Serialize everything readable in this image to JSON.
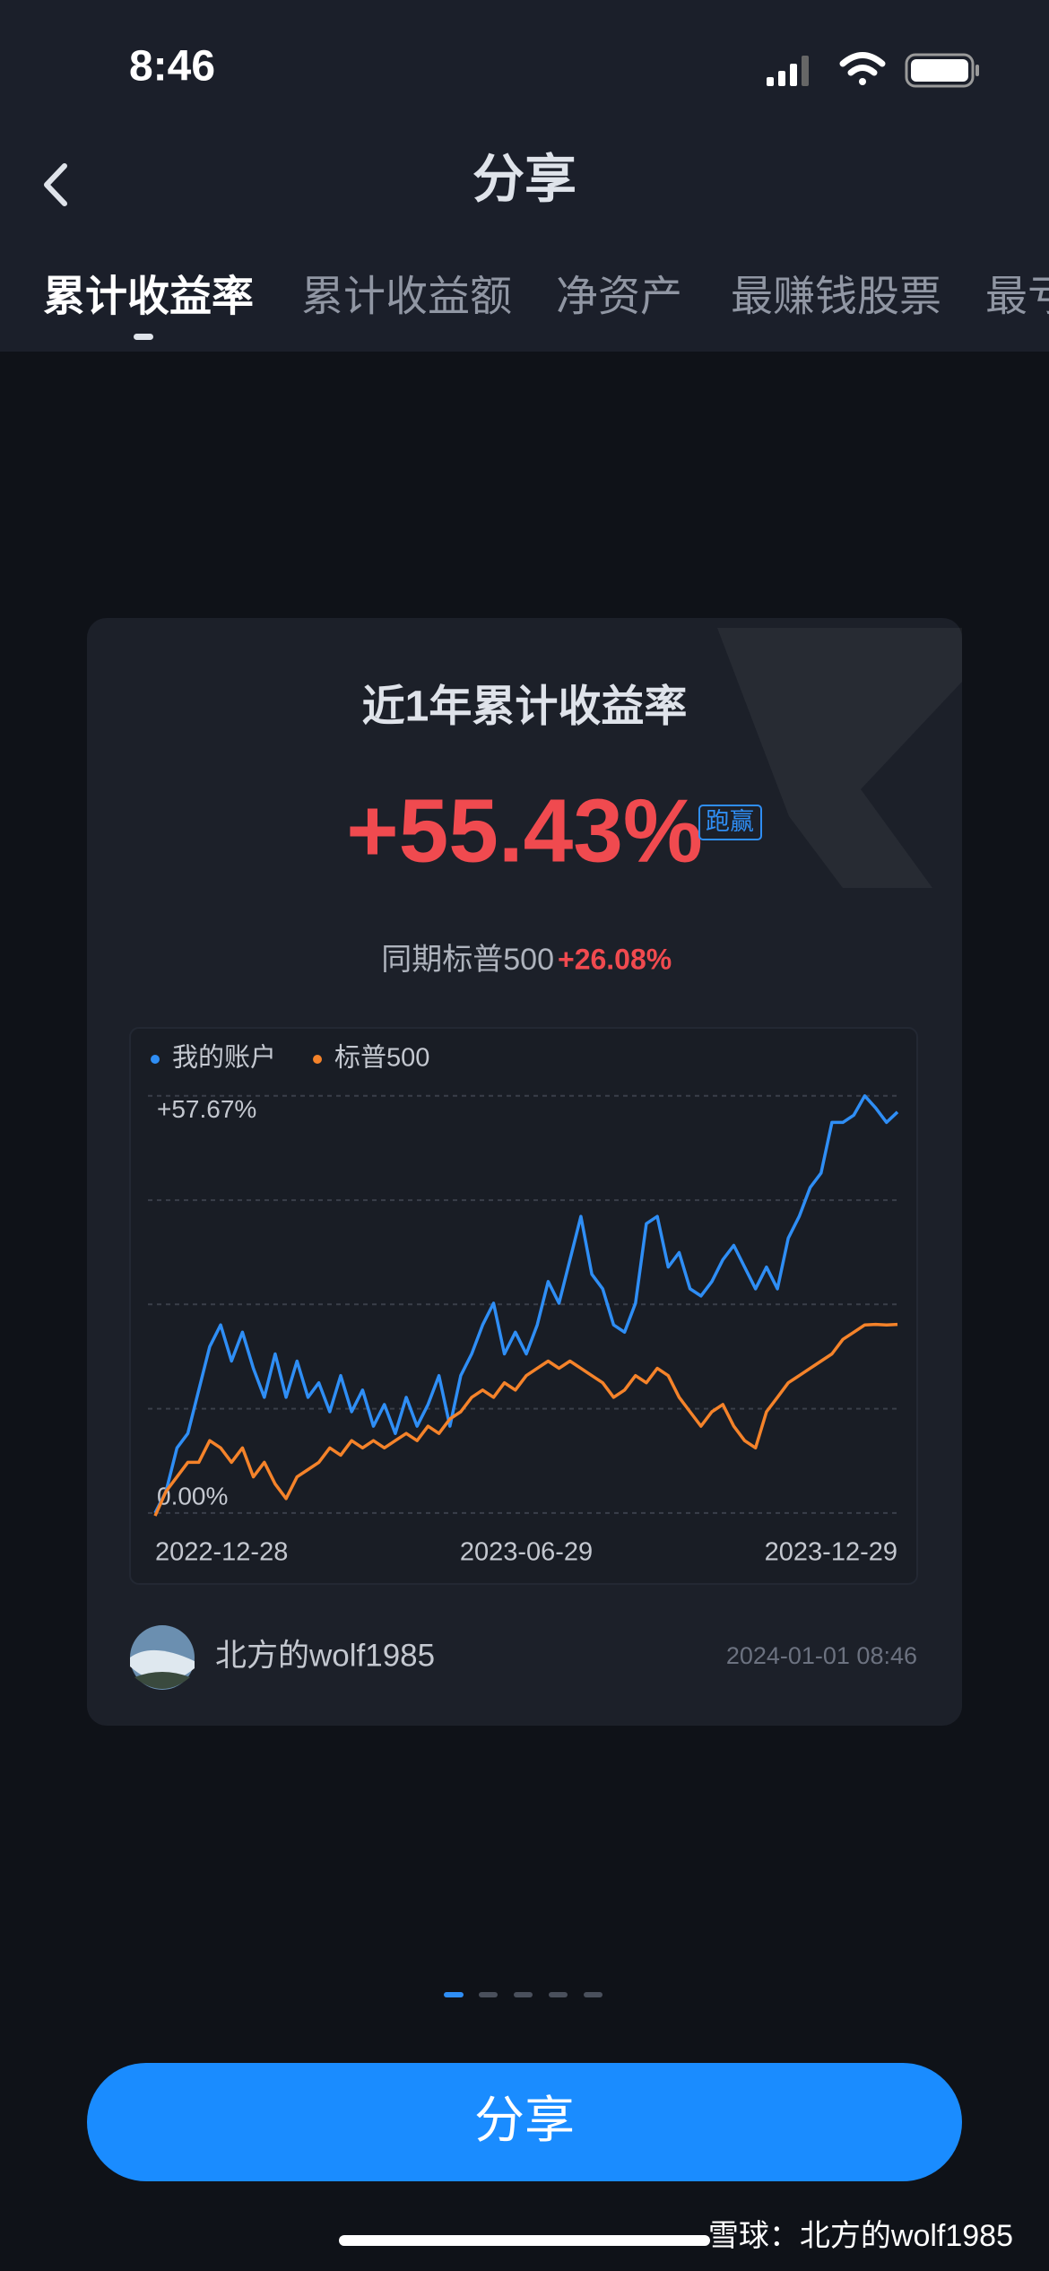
{
  "status_bar": {
    "time": "8:46"
  },
  "header": {
    "title": "分享"
  },
  "tabs": [
    "累计收益率",
    "累计收益额",
    "净资产",
    "最赚钱股票",
    "最亏"
  ],
  "card": {
    "title": "近1年累计收益率",
    "return": "+55.43%",
    "badge": "跑赢",
    "benchmark_label": "同期标普500",
    "benchmark_return": "+26.08%",
    "user": "北方的wolf1985",
    "timestamp": "2024-01-01 08:46"
  },
  "chart_data": {
    "type": "line",
    "x_labels": [
      "2022-12-28",
      "2023-06-29",
      "2023-12-29"
    ],
    "series": [
      {
        "name": "我的账户",
        "color": "#2f8ef5",
        "values": [
          0,
          3,
          9,
          11,
          17,
          23,
          26,
          21,
          25,
          20,
          16,
          22,
          16,
          21,
          16,
          18,
          14,
          19,
          14,
          17,
          12,
          15,
          11,
          16,
          12,
          15,
          19,
          12,
          19,
          22,
          26,
          29,
          22,
          25,
          22,
          26,
          32,
          29,
          35,
          41,
          33,
          31,
          26,
          25,
          29,
          40,
          41,
          34,
          36,
          31,
          30,
          32,
          35,
          37,
          34,
          31,
          34,
          31,
          38,
          41,
          45,
          47,
          54,
          54,
          55,
          57.67,
          56,
          54,
          55.43
        ]
      },
      {
        "name": "标普500",
        "color": "#f5832a",
        "values": [
          -0.4,
          3,
          5,
          7,
          7,
          10,
          9,
          7,
          9,
          5,
          7,
          4,
          2,
          5,
          6,
          7,
          9,
          8,
          10,
          9,
          10,
          9,
          10,
          11,
          10,
          12,
          11,
          13,
          14,
          16,
          17,
          16,
          18,
          17,
          19,
          20,
          21,
          20,
          21,
          20,
          19,
          18,
          16,
          17,
          19,
          18,
          20,
          19,
          16,
          14,
          12,
          14,
          15,
          12,
          10,
          9,
          14,
          16,
          18,
          19,
          20,
          21,
          22,
          24,
          25,
          26,
          26.08,
          26,
          26.08
        ]
      }
    ],
    "ylim": [
      -1.5,
      59.5
    ],
    "yticks": [
      {
        "value": 0,
        "label": "0.00%"
      },
      {
        "value": 14.42,
        "label": null
      },
      {
        "value": 28.84,
        "label": null
      },
      {
        "value": 43.25,
        "label": null
      },
      {
        "value": 57.67,
        "label": "+57.67%"
      }
    ],
    "grid": true
  },
  "button": "分享",
  "watermark": "雪球：北方的wolf1985"
}
